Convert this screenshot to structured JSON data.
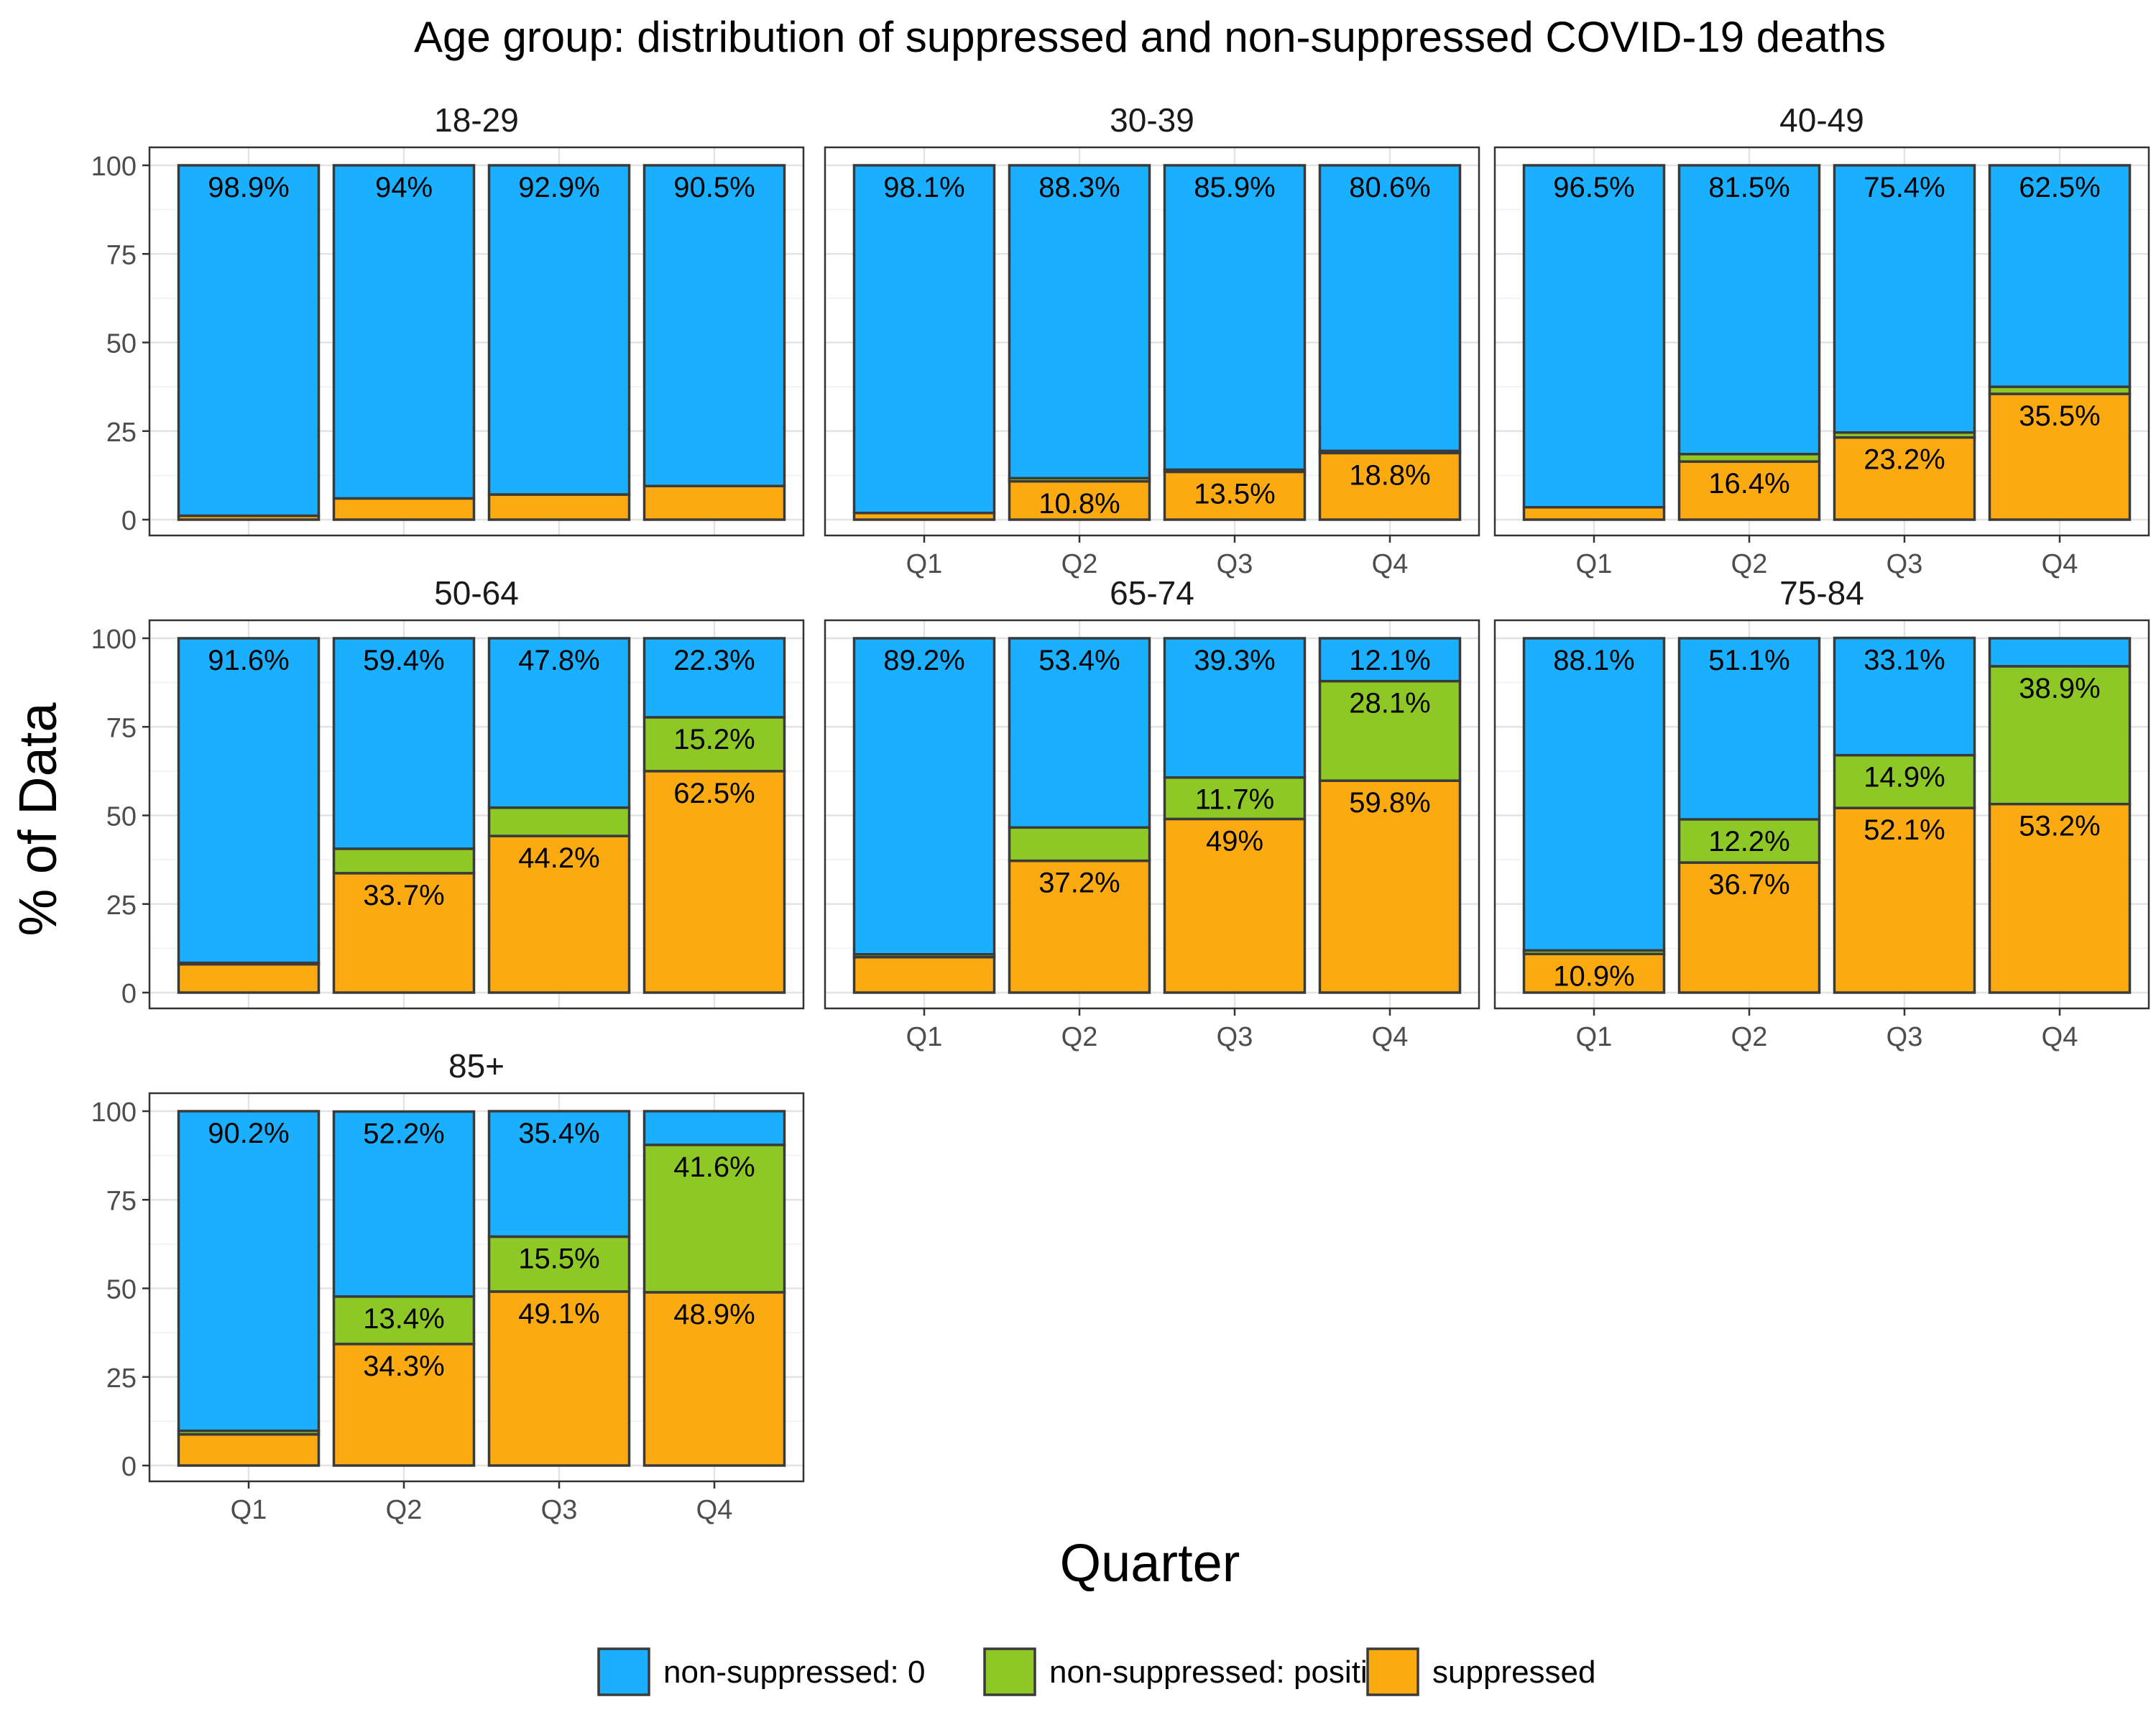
{
  "chart_data": {
    "type": "bar",
    "stacked": true,
    "title": "Age group: distribution of suppressed and non-suppressed COVID-19 deaths",
    "xlabel": "Quarter",
    "ylabel": "% of Data",
    "ylim": [
      0,
      100
    ],
    "yticks": [
      "0",
      "25",
      "50",
      "75",
      "100"
    ],
    "categories": [
      "Q1",
      "Q2",
      "Q3",
      "Q4"
    ],
    "grid": true,
    "legend_position": "bottom",
    "legend": [
      {
        "key": "non0",
        "label": "non-suppressed: 0",
        "color": "#1AAFFF"
      },
      {
        "key": "pos",
        "label": "non-suppressed: positive",
        "color": "#8DC827"
      },
      {
        "key": "sup",
        "label": "suppressed",
        "color": "#FCAA12"
      }
    ],
    "panels": [
      {
        "title": "18-29",
        "suppressed": [
          1.1,
          6.0,
          7.1,
          9.5
        ],
        "positive": [
          0.0,
          0.0,
          0.0,
          0.0
        ],
        "non_suppressed_0": [
          98.9,
          94.0,
          92.9,
          90.5
        ],
        "labels": {
          "non0": [
            "98.9%",
            "94%",
            "92.9%",
            "90.5%"
          ],
          "pos": [
            "",
            "",
            "",
            ""
          ],
          "sup": [
            "",
            "",
            "",
            ""
          ]
        }
      },
      {
        "title": "30-39",
        "suppressed": [
          1.9,
          10.8,
          13.5,
          18.8
        ],
        "positive": [
          0.0,
          0.9,
          0.6,
          0.6
        ],
        "non_suppressed_0": [
          98.1,
          88.3,
          85.9,
          80.6
        ],
        "labels": {
          "non0": [
            "98.1%",
            "88.3%",
            "85.9%",
            "80.6%"
          ],
          "pos": [
            "",
            "",
            "",
            ""
          ],
          "sup": [
            "",
            "10.8%",
            "13.5%",
            "18.8%"
          ]
        }
      },
      {
        "title": "40-49",
        "suppressed": [
          3.5,
          16.4,
          23.2,
          35.5
        ],
        "positive": [
          0.0,
          2.1,
          1.4,
          2.0
        ],
        "non_suppressed_0": [
          96.5,
          81.5,
          75.4,
          62.5
        ],
        "labels": {
          "non0": [
            "96.5%",
            "81.5%",
            "75.4%",
            "62.5%"
          ],
          "pos": [
            "",
            "",
            "",
            ""
          ],
          "sup": [
            "",
            "16.4%",
            "23.2%",
            "35.5%"
          ]
        }
      },
      {
        "title": "50-64",
        "suppressed": [
          8.0,
          33.7,
          44.2,
          62.5
        ],
        "positive": [
          0.4,
          6.9,
          8.0,
          15.2
        ],
        "non_suppressed_0": [
          91.6,
          59.4,
          47.8,
          22.3
        ],
        "labels": {
          "non0": [
            "91.6%",
            "59.4%",
            "47.8%",
            "22.3%"
          ],
          "pos": [
            "",
            "",
            "",
            "15.2%"
          ],
          "sup": [
            "",
            "33.7%",
            "44.2%",
            "62.5%"
          ]
        }
      },
      {
        "title": "65-74",
        "suppressed": [
          10.0,
          37.2,
          49.0,
          59.8
        ],
        "positive": [
          0.8,
          9.4,
          11.7,
          28.1
        ],
        "non_suppressed_0": [
          89.2,
          53.4,
          39.3,
          12.1
        ],
        "labels": {
          "non0": [
            "89.2%",
            "53.4%",
            "39.3%",
            "12.1%"
          ],
          "pos": [
            "",
            "",
            "11.7%",
            "28.1%"
          ],
          "sup": [
            "",
            "37.2%",
            "49%",
            "59.8%"
          ]
        }
      },
      {
        "title": "75-84",
        "suppressed": [
          10.9,
          36.7,
          52.1,
          53.2
        ],
        "positive": [
          1.0,
          12.2,
          14.9,
          38.9
        ],
        "non_suppressed_0": [
          88.1,
          51.1,
          33.1,
          7.9
        ],
        "labels": {
          "non0": [
            "88.1%",
            "51.1%",
            "33.1%",
            ""
          ],
          "pos": [
            "",
            "12.2%",
            "14.9%",
            "38.9%"
          ],
          "sup": [
            "10.9%",
            "36.7%",
            "52.1%",
            "53.2%"
          ]
        }
      },
      {
        "title": "85+",
        "suppressed": [
          8.8,
          34.3,
          49.1,
          48.9
        ],
        "positive": [
          1.0,
          13.4,
          15.5,
          41.6
        ],
        "non_suppressed_0": [
          90.2,
          52.2,
          35.4,
          9.5
        ],
        "labels": {
          "non0": [
            "90.2%",
            "52.2%",
            "35.4%",
            ""
          ],
          "pos": [
            "",
            "13.4%",
            "15.5%",
            "41.6%"
          ],
          "sup": [
            "",
            "34.3%",
            "49.1%",
            "48.9%"
          ]
        }
      }
    ]
  }
}
